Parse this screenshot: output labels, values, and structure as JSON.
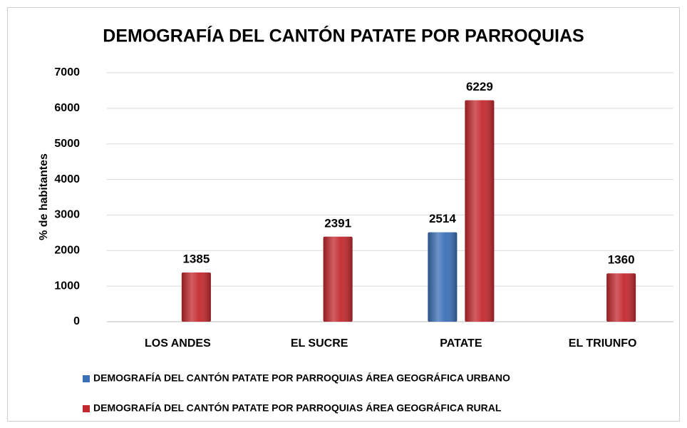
{
  "chart_data": {
    "type": "bar",
    "title": "DEMOGRAFÍA DEL CANTÓN PATATE  POR PARROQUIAS",
    "y_label": "% de habitantes",
    "categories": [
      "LOS ANDES",
      "EL SUCRE",
      "PATATE",
      "EL TRIUNFO"
    ],
    "series": [
      {
        "name": "DEMOGRAFÍA DEL CANTÓN PATATE  POR PARROQUIAS ÁREA GEOGRÁFICA URBANO",
        "color": "#3b6fb6",
        "values": [
          null,
          null,
          2514,
          null
        ]
      },
      {
        "name": "DEMOGRAFÍA DEL CANTÓN PATATE  POR PARROQUIAS ÁREA GEOGRÁFICA RURAL",
        "color": "#c3282e",
        "values": [
          1385,
          2391,
          6229,
          1360
        ]
      }
    ],
    "ylim": [
      0,
      7000
    ],
    "yticks": [
      0,
      1000,
      2000,
      3000,
      4000,
      5000,
      6000,
      7000
    ],
    "grid": true,
    "legend": "bottom"
  }
}
